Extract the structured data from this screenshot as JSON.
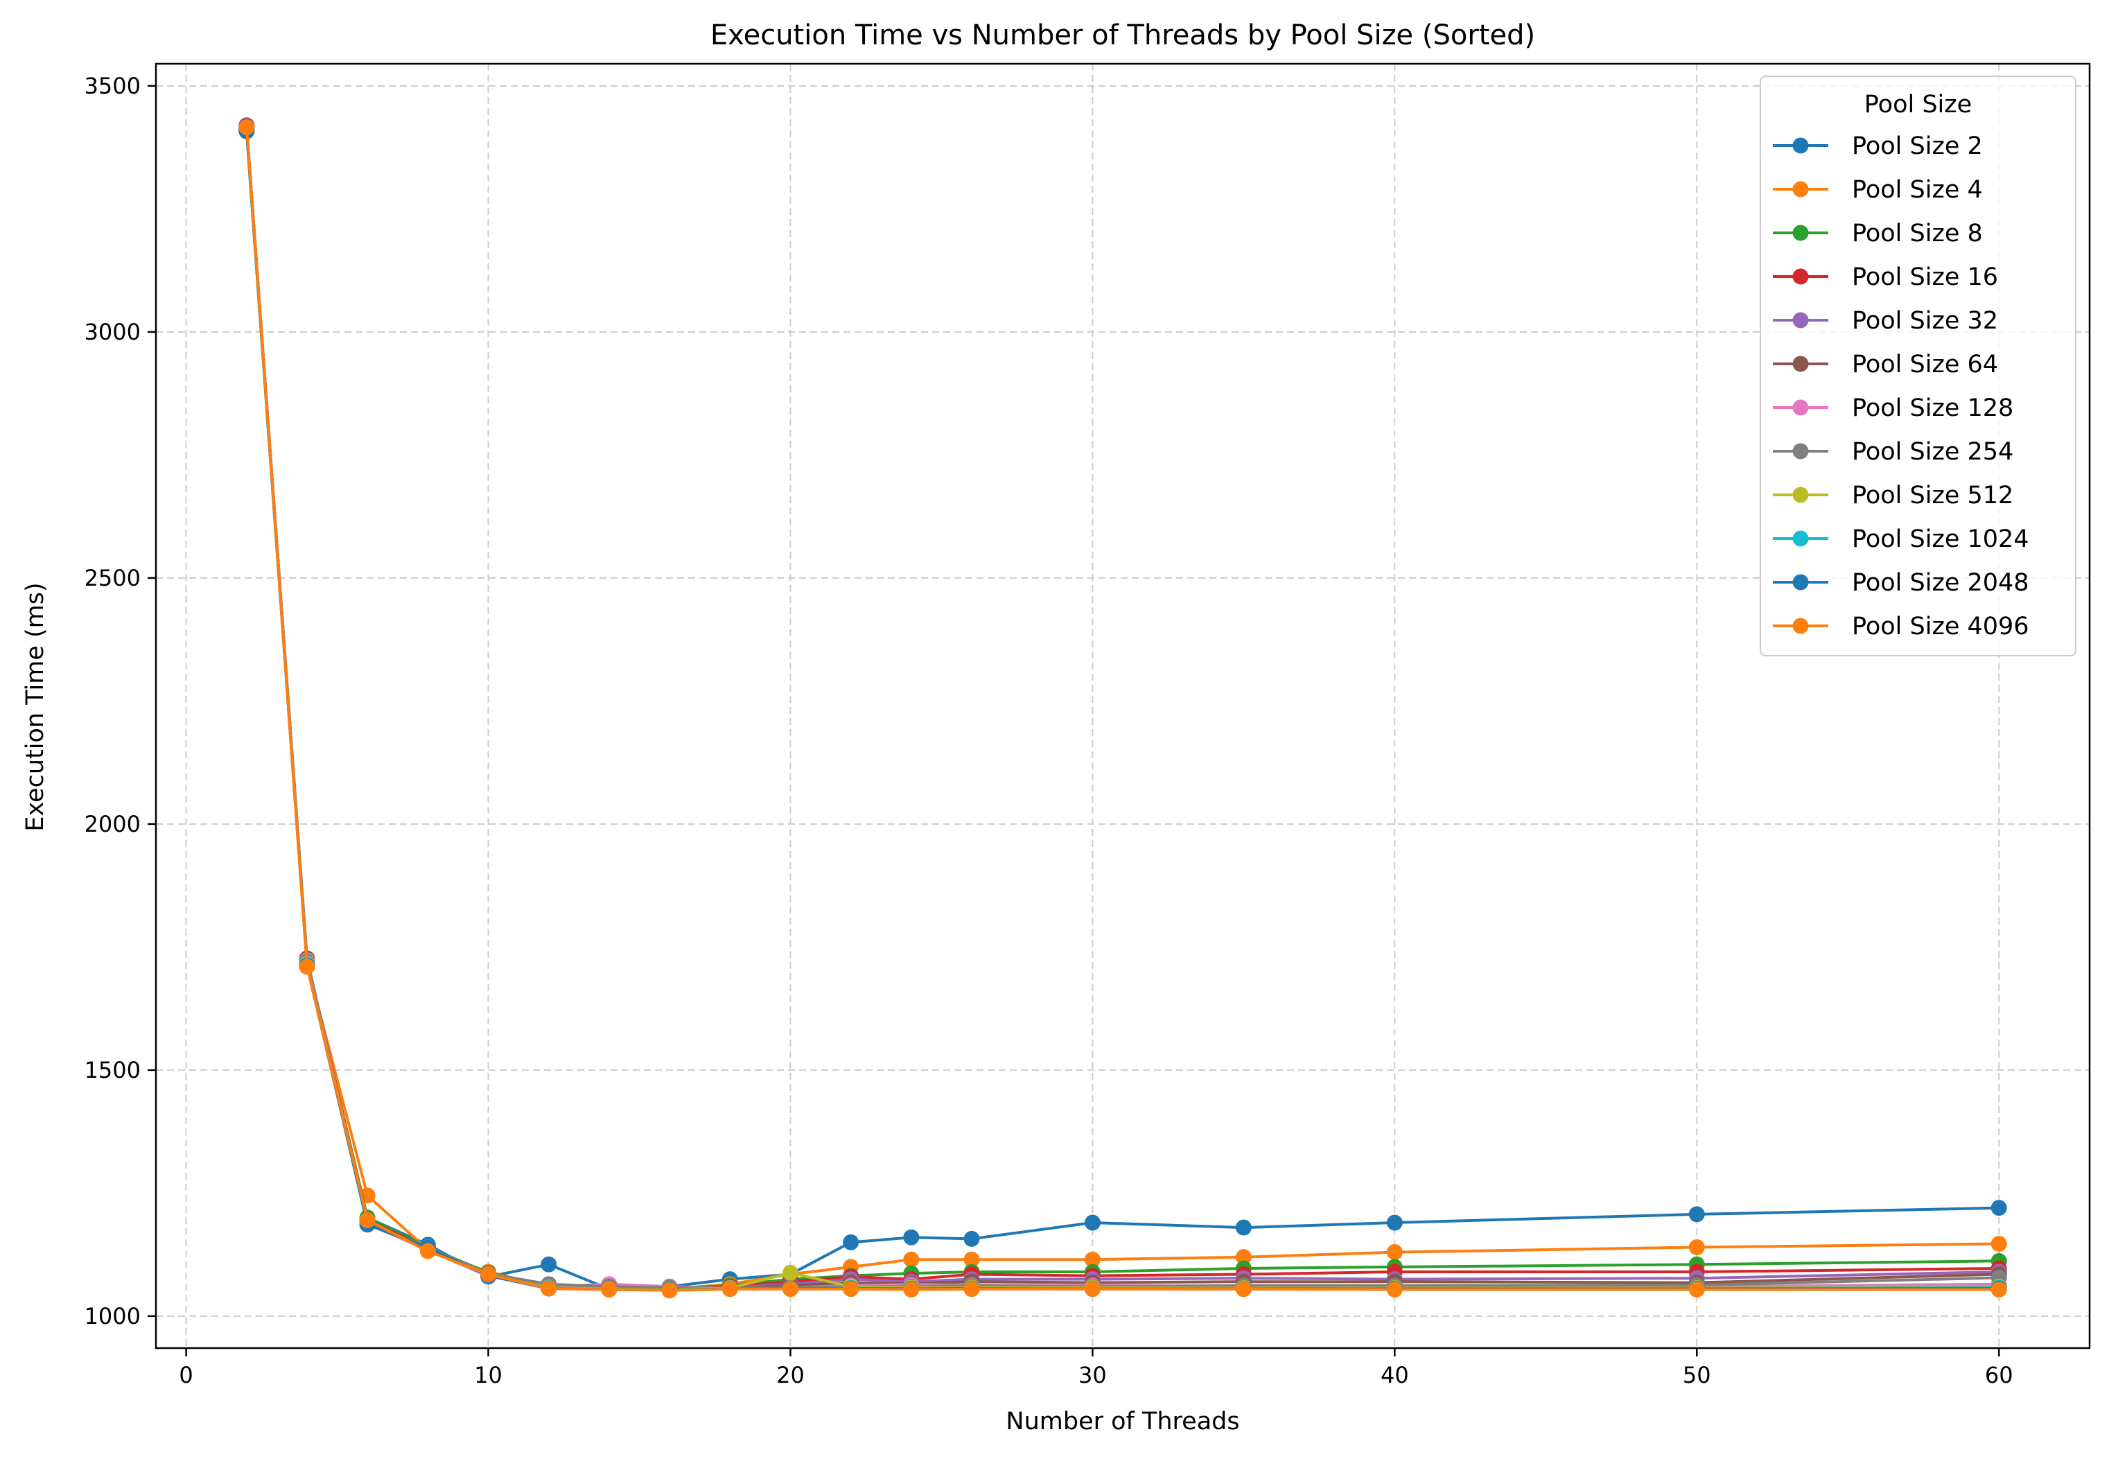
{
  "chart_data": {
    "type": "line",
    "title": "Execution Time vs Number of Threads by Pool Size (Sorted)",
    "xlabel": "Number of Threads",
    "ylabel": "Execution Time (ms)",
    "xlim": [
      -1,
      63
    ],
    "ylim": [
      935,
      3545
    ],
    "xticks": [
      0,
      10,
      20,
      30,
      40,
      50,
      60
    ],
    "yticks": [
      1000,
      1500,
      2000,
      2500,
      3000,
      3500
    ],
    "grid": true,
    "legend_title": "Pool Size",
    "legend_position": "top-right",
    "x": [
      2,
      4,
      6,
      8,
      10,
      12,
      14,
      16,
      18,
      20,
      22,
      24,
      26,
      30,
      35,
      40,
      50,
      60
    ],
    "series": [
      {
        "name": "Pool Size 2",
        "color": "#1f77b4",
        "values": [
          3410,
          1720,
          1200,
          1145,
          1080,
          1105,
          1055,
          1060,
          1075,
          1085,
          1150,
          1160,
          1157,
          1190,
          1180,
          1190,
          1207,
          1220
        ]
      },
      {
        "name": "Pool Size 4",
        "color": "#ff7f0e",
        "values": [
          3415,
          1715,
          1245,
          1135,
          1090,
          1060,
          1058,
          1055,
          1065,
          1085,
          1100,
          1115,
          1115,
          1115,
          1120,
          1130,
          1140,
          1147
        ]
      },
      {
        "name": "Pool Size 8",
        "color": "#2ca02c",
        "values": [
          3412,
          1718,
          1200,
          1140,
          1088,
          1062,
          1057,
          1056,
          1062,
          1075,
          1082,
          1087,
          1090,
          1090,
          1097,
          1100,
          1105,
          1112
        ]
      },
      {
        "name": "Pool Size 16",
        "color": "#d62728",
        "values": [
          3418,
          1722,
          1195,
          1138,
          1085,
          1060,
          1056,
          1055,
          1060,
          1070,
          1080,
          1075,
          1085,
          1082,
          1085,
          1090,
          1090,
          1097
        ]
      },
      {
        "name": "Pool Size 32",
        "color": "#9467bd",
        "values": [
          3420,
          1725,
          1192,
          1136,
          1083,
          1059,
          1058,
          1057,
          1058,
          1065,
          1075,
          1070,
          1075,
          1075,
          1077,
          1075,
          1077,
          1090
        ]
      },
      {
        "name": "Pool Size 64",
        "color": "#8c564b",
        "values": [
          3418,
          1727,
          1190,
          1135,
          1082,
          1058,
          1057,
          1056,
          1057,
          1062,
          1068,
          1066,
          1070,
          1068,
          1070,
          1070,
          1068,
          1085
        ]
      },
      {
        "name": "Pool Size 128",
        "color": "#e377c2",
        "values": [
          3415,
          1723,
          1188,
          1134,
          1081,
          1060,
          1065,
          1060,
          1056,
          1058,
          1062,
          1064,
          1063,
          1062,
          1061,
          1060,
          1060,
          1065
        ]
      },
      {
        "name": "Pool Size 254",
        "color": "#7f7f7f",
        "values": [
          3412,
          1720,
          1187,
          1140,
          1086,
          1065,
          1060,
          1058,
          1057,
          1058,
          1060,
          1060,
          1062,
          1060,
          1062,
          1062,
          1063,
          1078
        ]
      },
      {
        "name": "Pool Size 512",
        "color": "#bcbd22",
        "values": [
          3414,
          1716,
          1190,
          1137,
          1084,
          1058,
          1055,
          1054,
          1057,
          1088,
          1060,
          1058,
          1058,
          1058,
          1057,
          1057,
          1057,
          1060
        ]
      },
      {
        "name": "Pool Size 1024",
        "color": "#17becf",
        "values": [
          3411,
          1714,
          1189,
          1136,
          1083,
          1057,
          1054,
          1053,
          1056,
          1056,
          1057,
          1056,
          1056,
          1056,
          1056,
          1056,
          1056,
          1058
        ]
      },
      {
        "name": "Pool Size 2048",
        "color": "#1f77b4",
        "values": [
          3408,
          1712,
          1186,
          1139,
          1082,
          1056,
          1054,
          1053,
          1055,
          1056,
          1056,
          1055,
          1056,
          1055,
          1055,
          1055,
          1055,
          1056
        ]
      },
      {
        "name": "Pool Size 4096",
        "color": "#ff7f0e",
        "values": [
          3416,
          1710,
          1195,
          1132,
          1085,
          1056,
          1054,
          1052,
          1055,
          1055,
          1055,
          1054,
          1055,
          1055,
          1055,
          1054,
          1054,
          1054
        ]
      }
    ]
  }
}
